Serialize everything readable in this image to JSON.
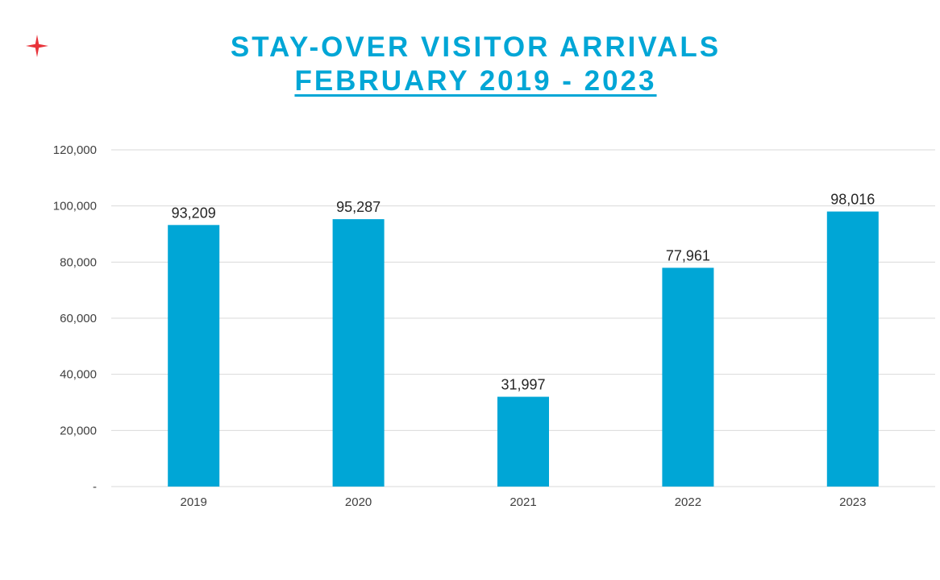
{
  "title": {
    "line1": "STAY-OVER VISITOR ARRIVALS",
    "line2": "FEBRUARY 2019 - 2023"
  },
  "colors": {
    "title": "#00a6d6",
    "bar": "#00a6d6",
    "logo": "#e8333a",
    "grid": "#d9d9d9"
  },
  "logo_icon": "red-four-point-star-icon",
  "chart_data": {
    "type": "bar",
    "categories": [
      "2019",
      "2020",
      "2021",
      "2022",
      "2023"
    ],
    "values": [
      93209,
      95287,
      31997,
      77961,
      98016
    ],
    "data_labels": [
      "93,209",
      "95,287",
      "31,997",
      "77,961",
      "98,016"
    ],
    "y_ticks": [
      0,
      20000,
      40000,
      60000,
      80000,
      100000,
      120000
    ],
    "y_tick_labels": [
      "-",
      "20,000",
      "40,000",
      "60,000",
      "80,000",
      "100,000",
      "120,000"
    ],
    "ylim": [
      0,
      120000
    ],
    "grid": true,
    "legend": "none",
    "xlabel": "",
    "ylabel": ""
  }
}
